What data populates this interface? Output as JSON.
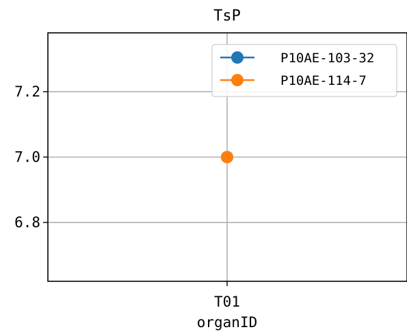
{
  "chart_data": {
    "type": "line",
    "title": "TsP",
    "xlabel": "organID",
    "ylabel": "",
    "categories": [
      "T01"
    ],
    "ylim": [
      6.62,
      7.38
    ],
    "yticks": [
      6.8,
      7.0,
      7.2
    ],
    "ytick_labels": [
      "6.8",
      "7.0",
      "7.2"
    ],
    "grid": true,
    "legend_position": "top-right",
    "series": [
      {
        "name": "P10AE-103-32",
        "color": "#1f77b4",
        "values": [
          7.0
        ]
      },
      {
        "name": "P10AE-114-7",
        "color": "#ff7f0e",
        "values": [
          7.0
        ]
      }
    ]
  }
}
